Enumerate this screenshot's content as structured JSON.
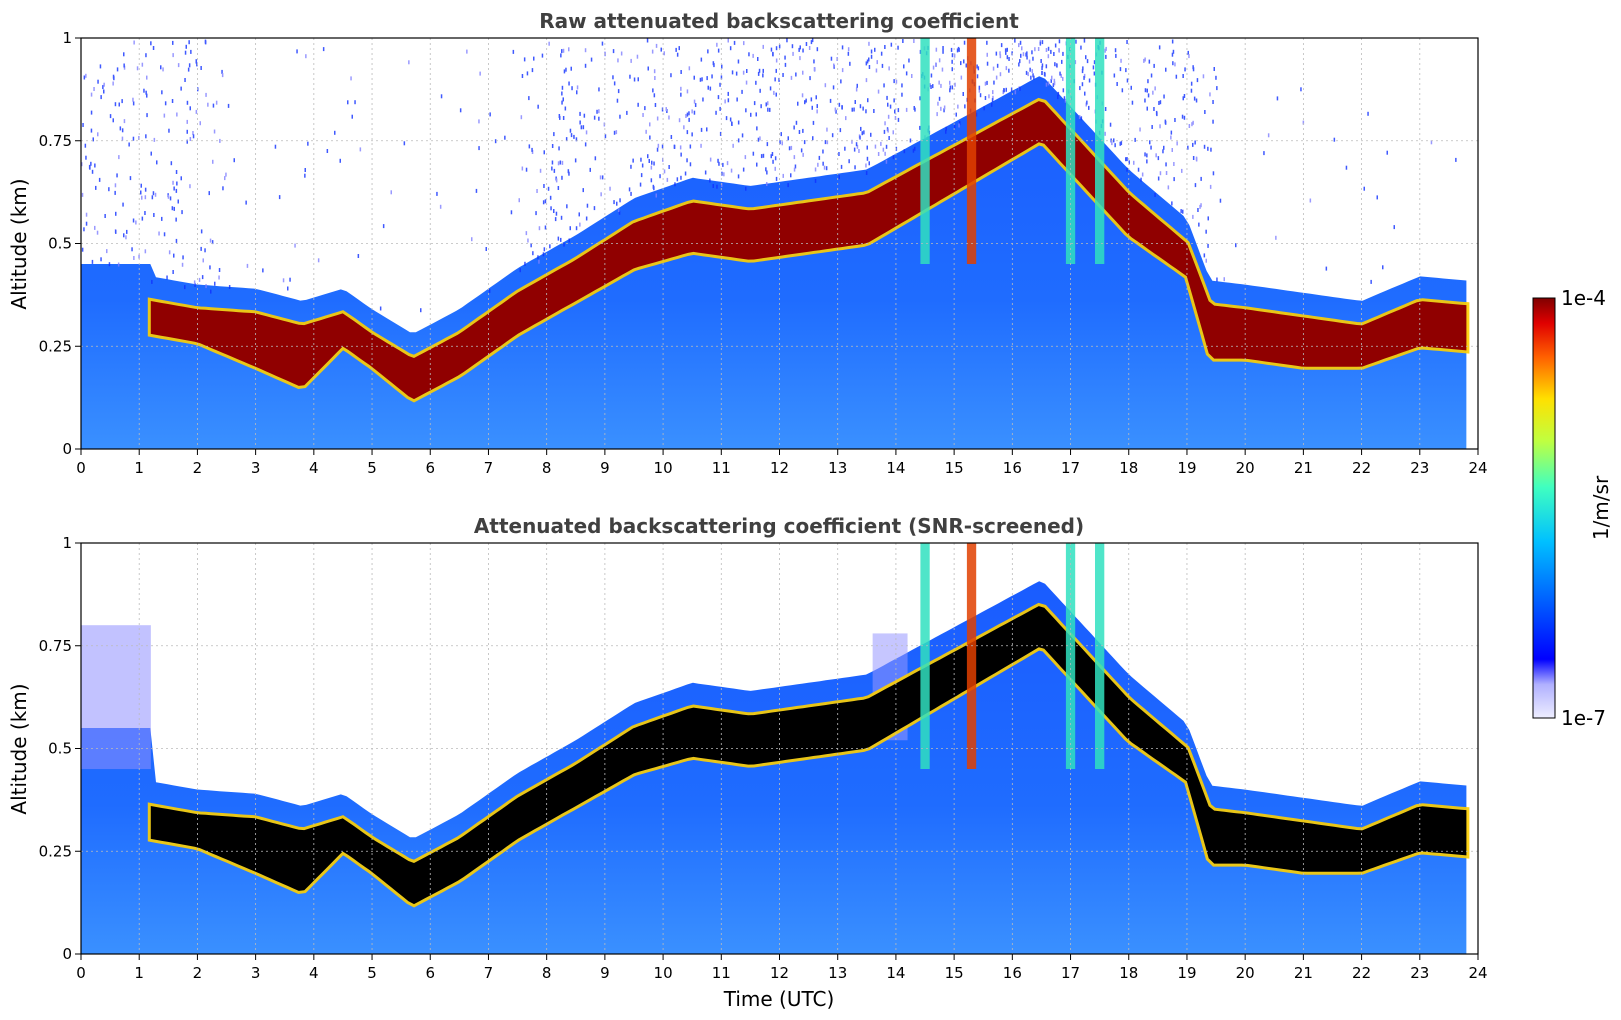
{
  "chart_data": [
    {
      "type": "heatmap",
      "title": "Raw attenuated backscattering coefficient",
      "xlabel": "",
      "ylabel": "Altitude (km)",
      "xlim": [
        0,
        24
      ],
      "ylim": [
        0,
        1
      ],
      "xticks": [
        "0",
        "1",
        "2",
        "3",
        "4",
        "5",
        "6",
        "7",
        "8",
        "9",
        "10",
        "11",
        "12",
        "13",
        "14",
        "15",
        "16",
        "17",
        "18",
        "19",
        "20",
        "21",
        "22",
        "23",
        "24"
      ],
      "yticks": [
        "0",
        "0.25",
        "0.5",
        "0.75",
        "1"
      ],
      "grid": true,
      "data_end_hour": 23.8,
      "layer_top_km": {
        "x": [
          1.2,
          2,
          3,
          3.8,
          4.5,
          5,
          5.7,
          6.5,
          7.5,
          8.5,
          9.5,
          10.5,
          11.5,
          12.5,
          13.5,
          16.5,
          18,
          19,
          19.4,
          20,
          21,
          22,
          23,
          23.8
        ],
        "y": [
          0.36,
          0.34,
          0.33,
          0.3,
          0.33,
          0.28,
          0.22,
          0.28,
          0.38,
          0.46,
          0.55,
          0.6,
          0.58,
          0.6,
          0.62,
          0.85,
          0.62,
          0.5,
          0.35,
          0.34,
          0.32,
          0.3,
          0.36,
          0.35
        ]
      },
      "layer_bottom_km": {
        "x": [
          1.2,
          2,
          3,
          3.8,
          4.5,
          5,
          5.7,
          6.5,
          7.5,
          8.5,
          9.5,
          10.5,
          11.5,
          12.5,
          13.5,
          16.5,
          18,
          19,
          19.4,
          20,
          21,
          22,
          23,
          23.8
        ],
        "y": [
          0.28,
          0.26,
          0.2,
          0.15,
          0.25,
          0.2,
          0.12,
          0.18,
          0.28,
          0.36,
          0.44,
          0.48,
          0.46,
          0.48,
          0.5,
          0.75,
          0.52,
          0.42,
          0.22,
          0.22,
          0.2,
          0.2,
          0.25,
          0.24
        ]
      },
      "cloud_columns_hours": [
        14.5,
        15.3,
        17.0,
        17.5
      ]
    },
    {
      "type": "heatmap",
      "title": "Attenuated backscattering coefficient (SNR-screened)",
      "xlabel": "Time (UTC)",
      "ylabel": "Altitude (km)",
      "xlim": [
        0,
        24
      ],
      "ylim": [
        0,
        1
      ],
      "xticks": [
        "0",
        "1",
        "2",
        "3",
        "4",
        "5",
        "6",
        "7",
        "8",
        "9",
        "10",
        "11",
        "12",
        "13",
        "14",
        "15",
        "16",
        "17",
        "18",
        "19",
        "20",
        "21",
        "22",
        "23",
        "24"
      ],
      "yticks": [
        "0",
        "0.25",
        "0.5",
        "0.75",
        "1"
      ],
      "grid": true,
      "data_end_hour": 23.8
    }
  ],
  "colorbar": {
    "max_label": "1e-4",
    "min_label": "1e-7",
    "unit_label": "1/m/sr",
    "colormap": [
      "#eeeeff",
      "#b0b0ff",
      "#0000ff",
      "#0060ff",
      "#00c0ff",
      "#40ffc0",
      "#c0ff40",
      "#ffe000",
      "#ff6000",
      "#e00000",
      "#800000"
    ]
  }
}
